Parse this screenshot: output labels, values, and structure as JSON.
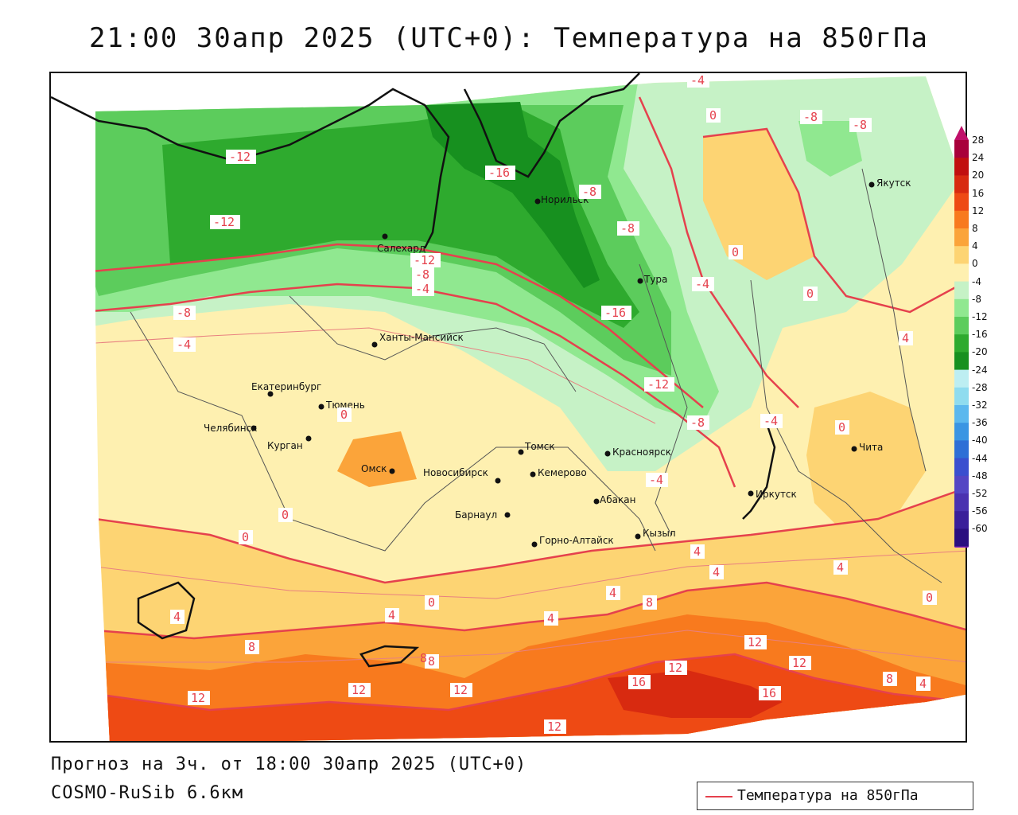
{
  "title": "21:00 30апр 2025 (UTC+0): Температура на 850гПа",
  "forecast_line": "Прогноз на 3ч. от 18:00 30апр 2025 (UTC+0)",
  "model_line": "COSMO-RuSib 6.6км",
  "legend": {
    "series_label": "Температура на 850гПа",
    "line_color": "#e5414d"
  },
  "colorbar": {
    "labels": [
      "28",
      "24",
      "20",
      "16",
      "12",
      "8",
      "4",
      "0",
      "-4",
      "-8",
      "-12",
      "-16",
      "-20",
      "-24",
      "-28",
      "-32",
      "-36",
      "-40",
      "-44",
      "-48",
      "-52",
      "-56",
      "-60"
    ],
    "colors": [
      "#a8003a",
      "#c10f0f",
      "#d82a10",
      "#ee4a14",
      "#f87a1e",
      "#fba43a",
      "#fdd473",
      "#fef0b0",
      "#c6f2c6",
      "#90e890",
      "#5ccc5c",
      "#2eaa2e",
      "#17901f",
      "#bdeef2",
      "#8fdcef",
      "#5bb8ee",
      "#3a95e3",
      "#2e6fd6",
      "#3a4fcf",
      "#5446c4",
      "#4a32b0",
      "#3a1f9a",
      "#2a0f80"
    ]
  },
  "cities": [
    {
      "name": "Якутск"
    },
    {
      "name": "Норильск"
    },
    {
      "name": "Салехард"
    },
    {
      "name": "Тура"
    },
    {
      "name": "Ханты-Мансийск"
    },
    {
      "name": "Екатеринбург"
    },
    {
      "name": "Тюмень"
    },
    {
      "name": "Челябинск"
    },
    {
      "name": "Курган"
    },
    {
      "name": "Омск"
    },
    {
      "name": "Новосибирск"
    },
    {
      "name": "Томск"
    },
    {
      "name": "Кемерово"
    },
    {
      "name": "Красноярск"
    },
    {
      "name": "Абакан"
    },
    {
      "name": "Барнаул"
    },
    {
      "name": "Горно-Алтайск"
    },
    {
      "name": "Кызыл"
    },
    {
      "name": "Иркутск"
    },
    {
      "name": "Чита"
    }
  ],
  "isotherm_labels": [
    "-4",
    "0",
    "-8",
    "-8",
    "-12",
    "-16",
    "-8",
    "-12",
    "-8",
    "-4",
    "-12",
    "-8",
    "-4",
    "0",
    "-4",
    "-8",
    "0",
    "-16",
    "-12",
    "-8",
    "-4",
    "4",
    "0",
    "0",
    "-4",
    "0",
    "4",
    "0",
    "4",
    "0",
    "4",
    "8",
    "4",
    "8",
    "12",
    "12",
    "8",
    "16",
    "16",
    "12",
    "12",
    "8",
    "4",
    "4",
    "4",
    "0",
    "12",
    "12",
    "12",
    "8",
    "4"
  ],
  "colors": {
    "contour": "#e5414d",
    "border": "#111111"
  }
}
